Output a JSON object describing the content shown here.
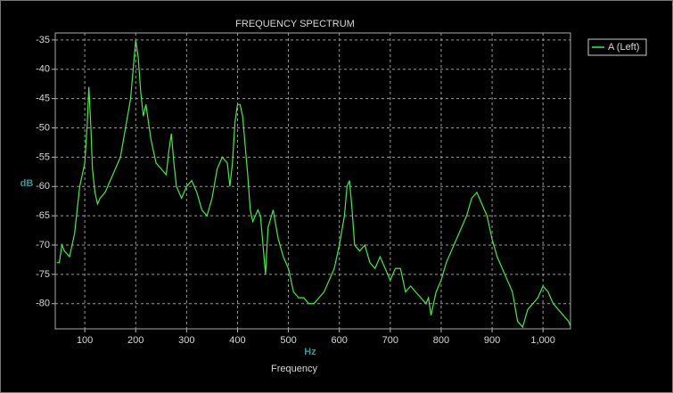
{
  "chart_data": {
    "type": "line",
    "title": "FREQUENCY SPECTRUM",
    "x_label": "Frequency",
    "x_unit": "Hz",
    "y_label": "dB",
    "x": [
      45,
      50,
      55,
      60,
      70,
      80,
      90,
      95,
      100,
      105,
      108,
      112,
      115,
      120,
      125,
      130,
      140,
      150,
      160,
      170,
      180,
      190,
      195,
      200,
      205,
      210,
      215,
      220,
      230,
      240,
      250,
      260,
      265,
      270,
      275,
      280,
      290,
      300,
      310,
      320,
      330,
      340,
      350,
      360,
      370,
      380,
      385,
      390,
      395,
      400,
      405,
      410,
      420,
      425,
      430,
      440,
      445,
      450,
      455,
      460,
      470,
      480,
      490,
      500,
      510,
      520,
      530,
      540,
      550,
      560,
      570,
      580,
      590,
      600,
      610,
      615,
      620,
      625,
      630,
      640,
      650,
      660,
      670,
      680,
      690,
      700,
      710,
      720,
      730,
      740,
      750,
      760,
      770,
      775,
      780,
      790,
      800,
      810,
      820,
      830,
      840,
      850,
      860,
      870,
      880,
      890,
      900,
      910,
      920,
      930,
      940,
      950,
      960,
      970,
      980,
      990,
      1000,
      1010,
      1020,
      1030,
      1040,
      1050,
      1055
    ],
    "series": [
      {
        "name": "A (Left)",
        "color": "#3cf03c",
        "values": [
          -73,
          -73,
          -70,
          -71,
          -72,
          -68,
          -60,
          -58,
          -56,
          -49,
          -43,
          -50,
          -57,
          -61,
          -63,
          -62,
          -61,
          -59,
          -57,
          -55,
          -50,
          -45,
          -40,
          -35,
          -38,
          -44,
          -48,
          -46,
          -52,
          -56,
          -57,
          -58,
          -54,
          -51,
          -56,
          -60,
          -62,
          -60,
          -59,
          -61,
          -64,
          -65,
          -62,
          -57,
          -55,
          -56,
          -60,
          -56,
          -49,
          -46,
          -46,
          -48,
          -58,
          -64,
          -66,
          -64,
          -65,
          -70,
          -75,
          -67,
          -64,
          -69,
          -72,
          -74,
          -78,
          -79,
          -79,
          -80,
          -80,
          -79,
          -78,
          -76,
          -74,
          -70,
          -65,
          -60,
          -59,
          -64,
          -70,
          -71,
          -70,
          -73,
          -74,
          -72,
          -74,
          -76,
          -74,
          -74,
          -78,
          -77,
          -78,
          -79,
          -80,
          -79,
          -82,
          -78,
          -76,
          -73,
          -71,
          -69,
          -67,
          -65,
          -62,
          -61,
          -63,
          -65,
          -69,
          -72,
          -74,
          -76,
          -78,
          -83,
          -84,
          -81,
          -80,
          -79,
          -77,
          -78,
          -80,
          -81,
          -82,
          -83,
          -84
        ]
      }
    ],
    "xlim": [
      42,
      1054
    ],
    "ylim": [
      -84.3,
      -33.8
    ],
    "xticks": [
      100,
      200,
      300,
      400,
      500,
      600,
      700,
      800,
      900,
      {
        "value": 1000,
        "label": "1,000"
      }
    ],
    "yticks": [
      -35,
      -40,
      -45,
      -50,
      -55,
      -60,
      -65,
      -70,
      -75,
      -80
    ],
    "grid": true,
    "legend": "upper right"
  }
}
